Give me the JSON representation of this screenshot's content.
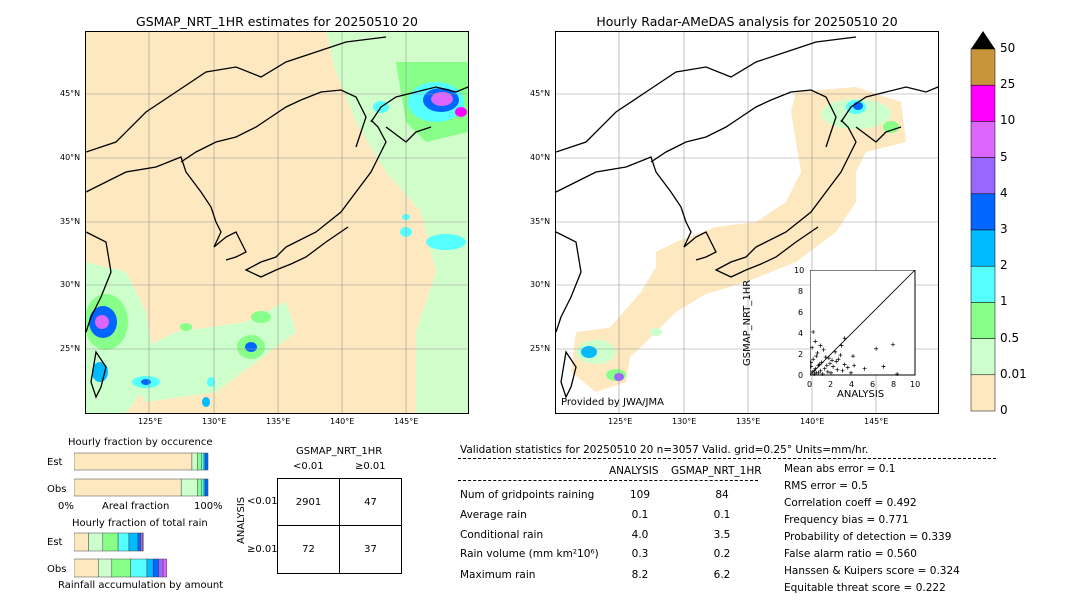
{
  "left_map": {
    "title": "GSMAP_NRT_1HR estimates for 20250510 20",
    "lat_ticks": [
      "45°N",
      "40°N",
      "35°N",
      "30°N",
      "25°N"
    ],
    "lon_ticks": [
      "125°E",
      "130°E",
      "135°E",
      "140°E",
      "145°E"
    ]
  },
  "right_map": {
    "title": "Hourly Radar-AMeDAS analysis for 20250510 20",
    "lat_ticks": [
      "45°N",
      "40°N",
      "35°N",
      "30°N",
      "25°N"
    ],
    "lon_ticks": [
      "125°E",
      "130°E",
      "135°E",
      "140°E",
      "145°E"
    ],
    "credit": "Provided by JWA/JMA"
  },
  "colorbar": {
    "labels": [
      "50",
      "25",
      "10",
      "5",
      "4",
      "3",
      "2",
      "1",
      "0.5",
      "0.01",
      "0"
    ],
    "colors": [
      "#c8943c",
      "#ff00ff",
      "#dd66ff",
      "#9966ff",
      "#0066ff",
      "#00bbff",
      "#55ffff",
      "#88ff88",
      "#ccffcc",
      "#ffe8c0"
    ]
  },
  "scatter": {
    "ylabel": "GSMAP_NRT_1HR",
    "xlabel": "ANALYSIS",
    "ticks": [
      "0",
      "2",
      "4",
      "6",
      "8",
      "10"
    ],
    "top_tick": "10"
  },
  "fraction_occurrence": {
    "title": "Hourly fraction by occurence",
    "rows": [
      "Est",
      "Obs"
    ],
    "axis_left": "0%",
    "axis_mid": "Areal fraction",
    "axis_right": "100%"
  },
  "fraction_total": {
    "title": "Hourly fraction of total rain",
    "rows": [
      "Est",
      "Obs"
    ],
    "footer": "Rainfall accumulation by amount"
  },
  "contingency": {
    "col_title": "GSMAP_NRT_1HR",
    "col_lt": "<0.01",
    "col_ge": "≥0.01",
    "row_title": "ANALYSIS",
    "row_lt": "<0.01",
    "row_ge": "≥0.01",
    "a": "2901",
    "b": "47",
    "c": "72",
    "d": "37"
  },
  "stats": {
    "header": "Validation statistics for 20250510 20  n=3057 Valid. grid=0.25°  Units=mm/hr.",
    "col_analysis": "ANALYSIS",
    "col_gsmap": "GSMAP_NRT_1HR",
    "rows": [
      {
        "label": "Num of gridpoints raining",
        "analysis": "109",
        "gsmap": "84"
      },
      {
        "label": "Average rain",
        "analysis": "0.1",
        "gsmap": "0.1"
      },
      {
        "label": "Conditional rain",
        "analysis": "4.0",
        "gsmap": "3.5"
      },
      {
        "label": "Rain volume (mm km²10⁶)",
        "analysis": "0.3",
        "gsmap": "0.2"
      },
      {
        "label": "Maximum rain",
        "analysis": "8.2",
        "gsmap": "6.2"
      }
    ],
    "scores": [
      "Mean abs error =    0.1",
      "RMS error =    0.5",
      "Correlation coeff =  0.492",
      "Frequency bias =  0.771",
      "Probability of detection =  0.339",
      "False alarm ratio =  0.560",
      "Hanssen & Kuipers score =  0.324",
      "Equitable threat score =  0.222"
    ]
  },
  "chart_data": [
    {
      "type": "scatter",
      "xlabel": "ANALYSIS",
      "ylabel": "GSMAP_NRT_1HR",
      "xlim": [
        0,
        10
      ],
      "ylim": [
        0,
        10
      ],
      "points": [
        [
          0.2,
          0.3
        ],
        [
          0.4,
          0.1
        ],
        [
          0.5,
          0.6
        ],
        [
          0.6,
          0.2
        ],
        [
          0.8,
          0.9
        ],
        [
          1.0,
          0.4
        ],
        [
          1.1,
          1.2
        ],
        [
          1.2,
          0.1
        ],
        [
          0.3,
          1.5
        ],
        [
          0.7,
          2.1
        ],
        [
          0.9,
          1.0
        ],
        [
          1.4,
          0.6
        ],
        [
          1.5,
          1.7
        ],
        [
          1.7,
          0.3
        ],
        [
          1.9,
          1.1
        ],
        [
          2.0,
          0.2
        ],
        [
          2.2,
          0.8
        ],
        [
          2.5,
          1.3
        ],
        [
          2.6,
          0.5
        ],
        [
          2.9,
          1.9
        ],
        [
          3.1,
          0.4
        ],
        [
          3.3,
          1.0
        ],
        [
          3.6,
          0.7
        ],
        [
          3.9,
          0.2
        ],
        [
          4.2,
          0.9
        ],
        [
          0.2,
          2.6
        ],
        [
          0.5,
          3.2
        ],
        [
          0.3,
          4.1
        ],
        [
          0.6,
          1.8
        ],
        [
          1.3,
          2.4
        ],
        [
          1.8,
          1.6
        ],
        [
          2.4,
          2.2
        ],
        [
          3.0,
          2.8
        ],
        [
          3.3,
          3.5
        ],
        [
          2.7,
          1.5
        ],
        [
          4.1,
          1.8
        ],
        [
          5.2,
          0.6
        ],
        [
          6.3,
          2.5
        ],
        [
          7.0,
          0.8
        ],
        [
          7.9,
          2.9
        ],
        [
          8.3,
          0.1
        ],
        [
          0.1,
          0.8
        ],
        [
          0.1,
          1.2
        ],
        [
          0.4,
          0.4
        ],
        [
          1.6,
          0.9
        ],
        [
          2.1,
          1.4
        ],
        [
          0.8,
          0.2
        ],
        [
          1.0,
          2.8
        ]
      ]
    },
    {
      "type": "bar",
      "title": "Hourly fraction by occurence",
      "categories": [
        "Est",
        "Obs"
      ],
      "series": [
        {
          "values": [
            0.88,
            0.8
          ]
        },
        {
          "values": [
            0.04,
            0.12
          ]
        },
        {
          "values": [
            0.03,
            0.03
          ]
        },
        {
          "values": [
            0.02,
            0.02
          ]
        },
        {
          "values": [
            0.01,
            0.01
          ]
        },
        {
          "values": [
            0.02,
            0.02
          ]
        }
      ]
    },
    {
      "type": "bar",
      "title": "Hourly fraction of total rain",
      "categories": [
        "Est",
        "Obs"
      ],
      "series": [
        {
          "values": [
            0.16,
            0.27
          ]
        },
        {
          "values": [
            0.16,
            0.15
          ]
        },
        {
          "values": [
            0.17,
            0.21
          ]
        },
        {
          "values": [
            0.12,
            0.18
          ]
        },
        {
          "values": [
            0.1,
            0.07
          ]
        },
        {
          "values": [
            0.03,
            0.06
          ]
        },
        {
          "values": [
            0.02,
            0.05
          ]
        },
        {
          "values": [
            0.01,
            0.04
          ]
        }
      ]
    }
  ]
}
